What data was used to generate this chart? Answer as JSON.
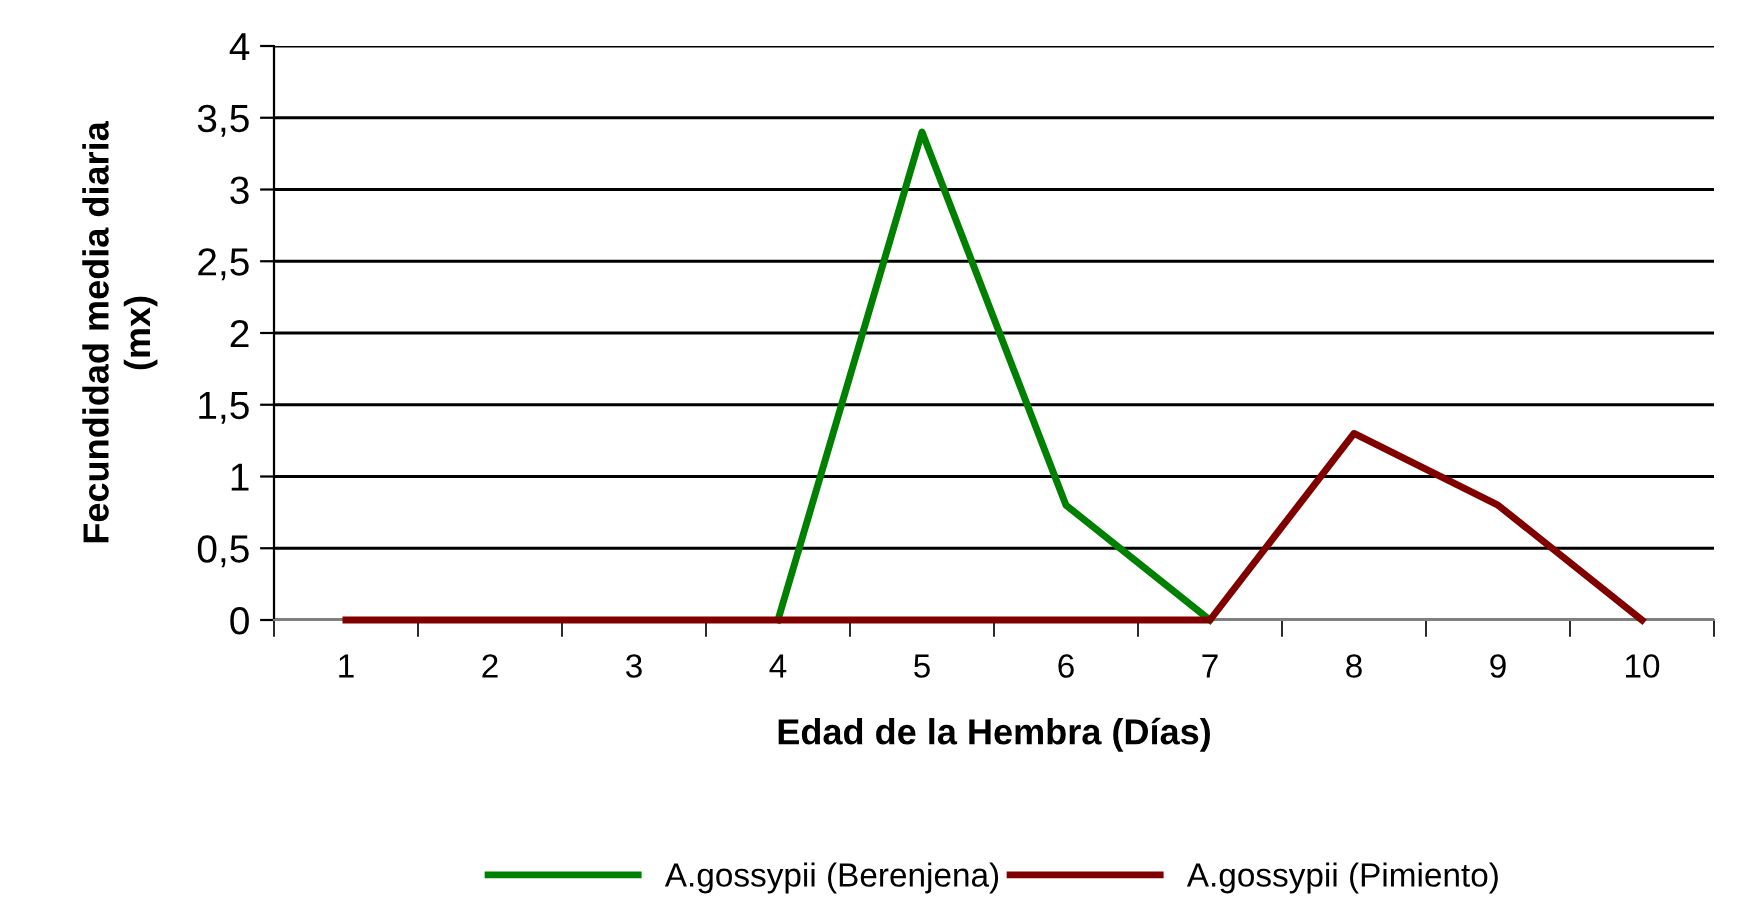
{
  "chart_data": {
    "type": "line",
    "xlabel": "Edad de la Hembra (Días)",
    "ylabel": "Fecundidad media diaria\n(mx)",
    "categories": [
      "1",
      "2",
      "3",
      "4",
      "5",
      "6",
      "7",
      "8",
      "9",
      "10"
    ],
    "series": [
      {
        "name": "A.gossypii (Berenjena)",
        "color": "#008000",
        "values": [
          null,
          null,
          null,
          0,
          3.4,
          0.8,
          0,
          null,
          null,
          null
        ]
      },
      {
        "name": "A.gossypii (Pimiento)",
        "color": "#800000",
        "values": [
          0,
          0,
          0,
          0,
          0,
          0,
          0,
          1.3,
          0.8,
          0
        ]
      }
    ],
    "ylim": [
      0,
      4
    ],
    "yticks": [
      0,
      {
        "value": 0.5,
        "label": "0,5"
      },
      1,
      {
        "value": 1.5,
        "label": "1,5"
      },
      2,
      {
        "value": 2.5,
        "label": "2,5"
      },
      3,
      {
        "value": 3.5,
        "label": "3,5"
      },
      4
    ],
    "grid": "y",
    "legend": "bottom",
    "marker": "none",
    "line_style": "solid"
  }
}
